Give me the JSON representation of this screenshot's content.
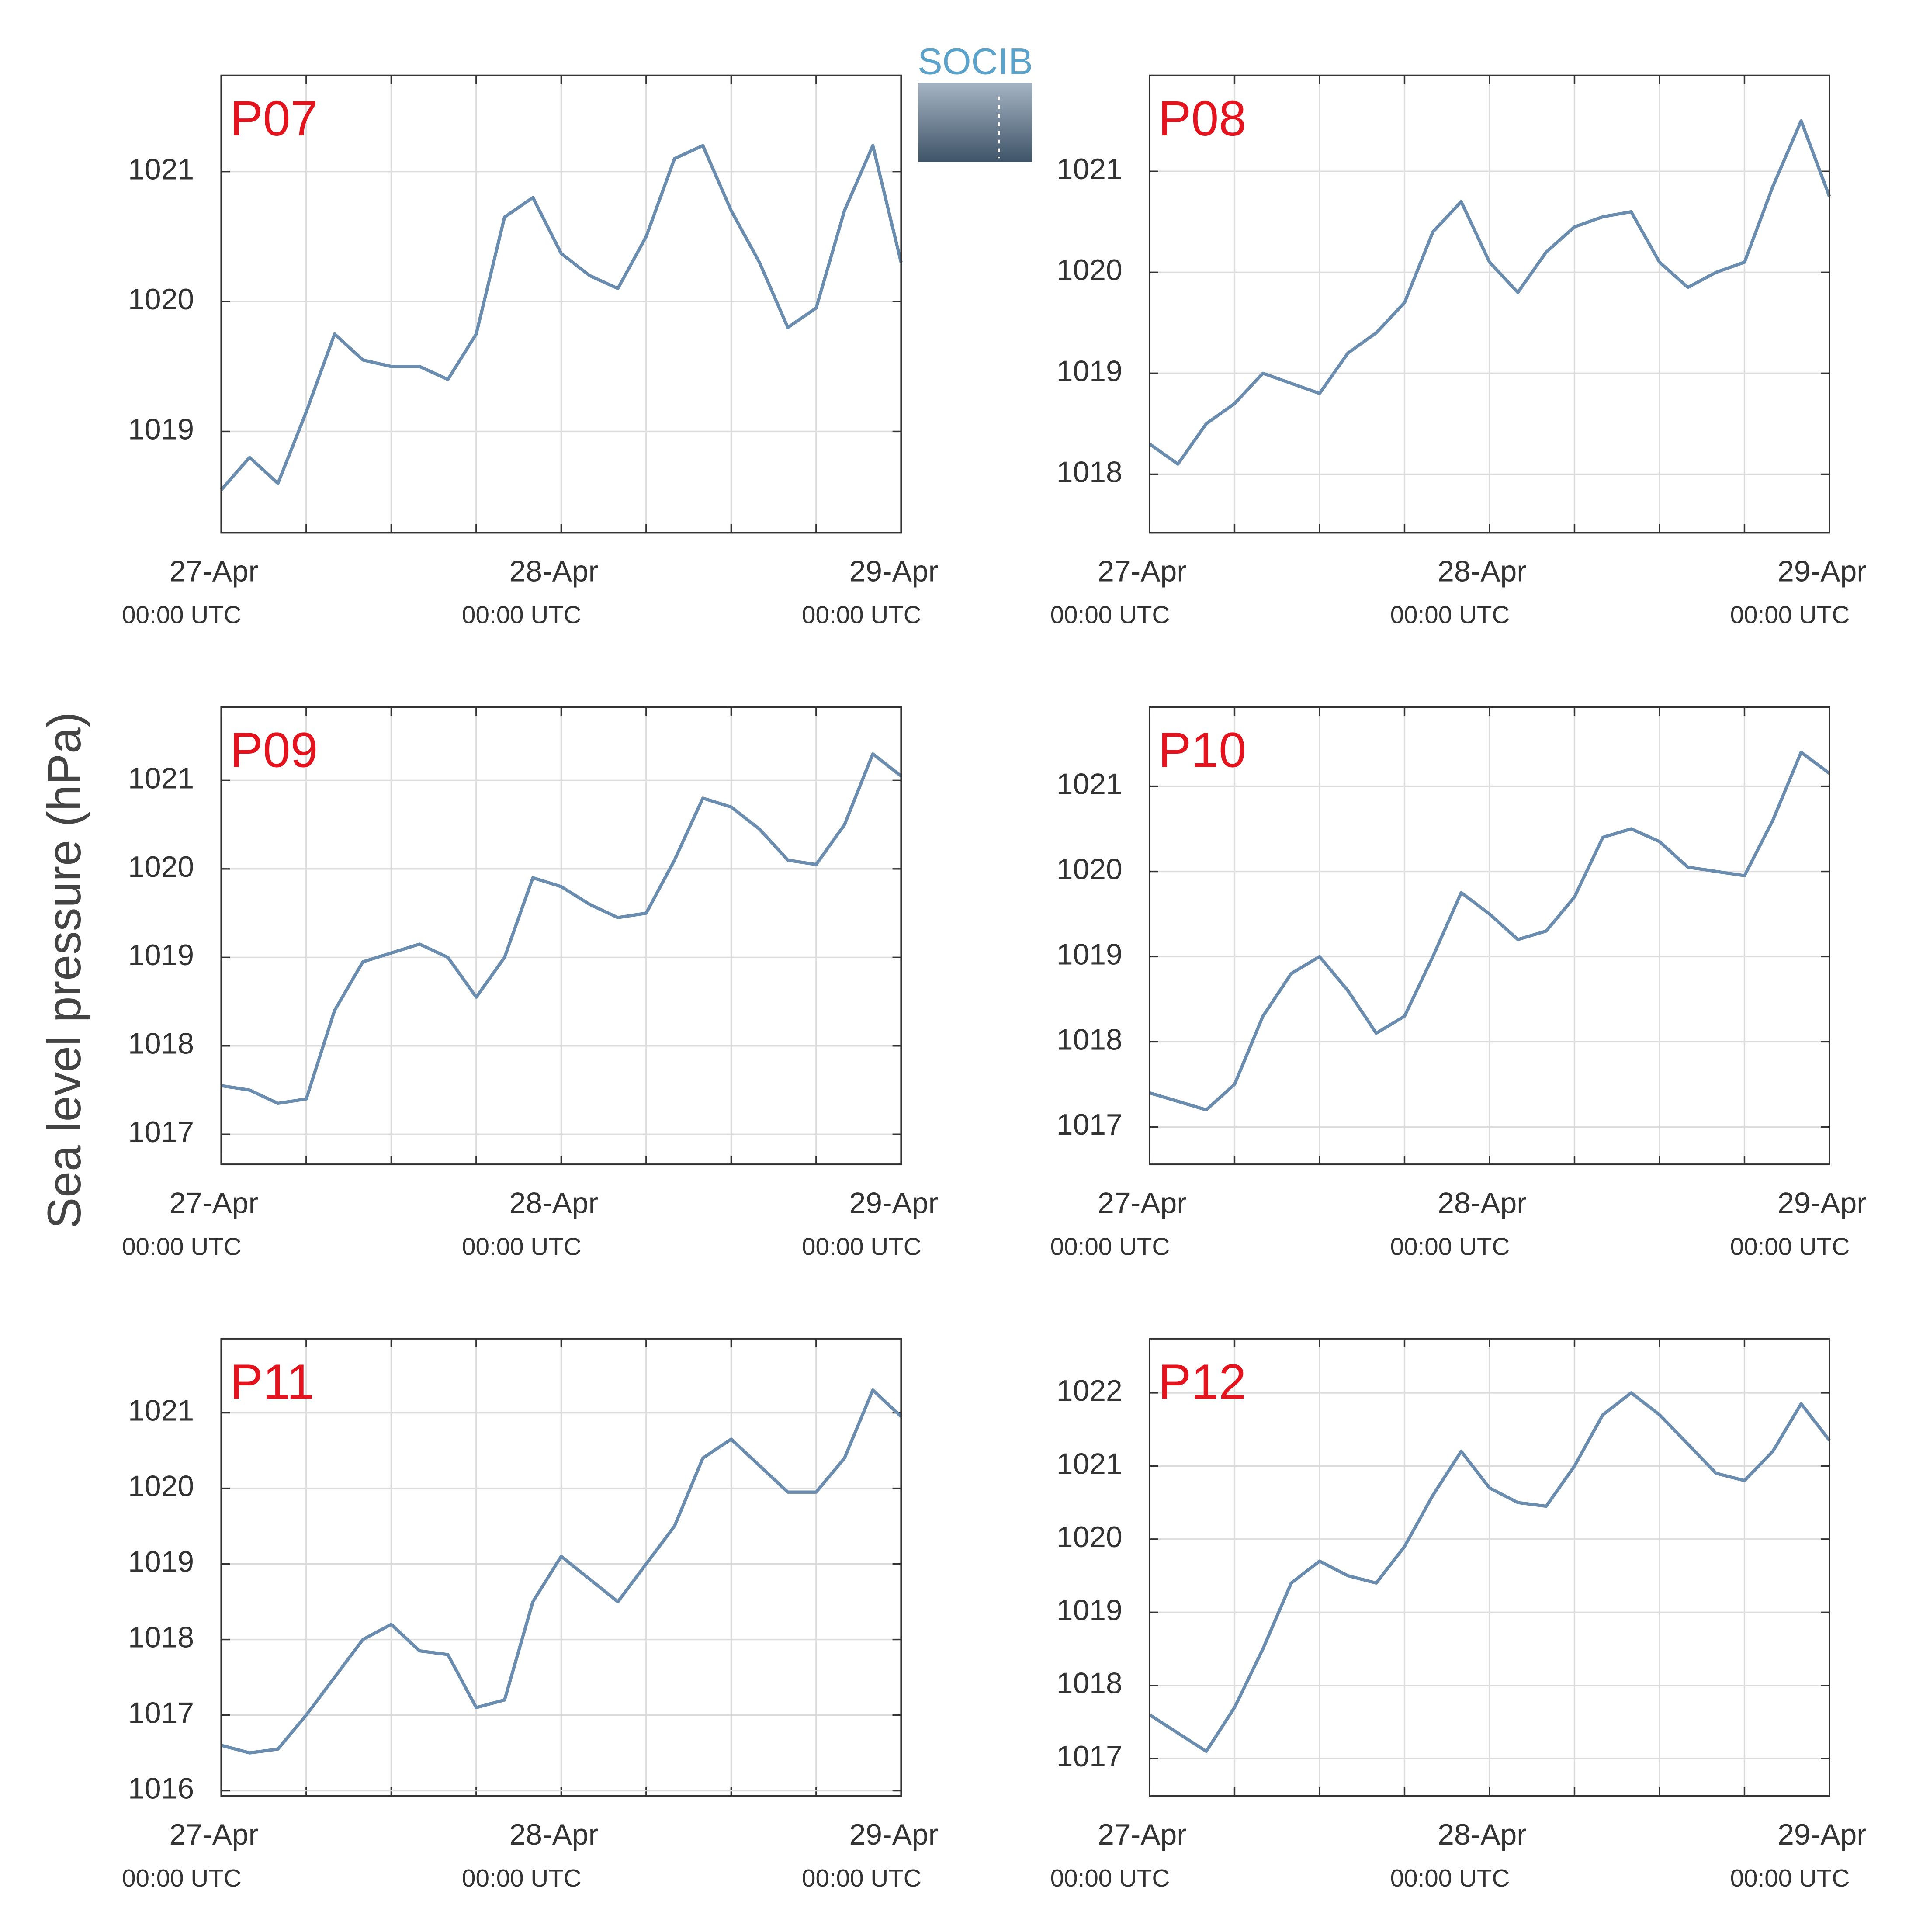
{
  "logo": "SOCIB",
  "ylabel": "Sea level pressure (hPa)",
  "chart_data": [
    {
      "type": "line",
      "title": "P07",
      "color": "#6a8caf",
      "x": [
        0,
        2,
        4,
        6,
        8,
        10,
        12,
        14,
        16,
        18,
        20,
        22,
        24,
        26,
        28,
        30,
        32,
        34,
        36,
        38,
        40,
        42,
        44,
        46,
        48
      ],
      "values": [
        1018.55,
        1018.8,
        1018.6,
        1019.15,
        1019.75,
        1019.55,
        1019.5,
        1019.5,
        1019.4,
        1019.75,
        1020.65,
        1020.8,
        1020.37,
        1020.2,
        1020.1,
        1020.5,
        1021.1,
        1021.2,
        1020.7,
        1020.3,
        1019.8,
        1019.95,
        1020.7,
        1021.2,
        1020.3
      ],
      "xlim": [
        0,
        48
      ],
      "xticks": [
        {
          "value": 0,
          "label": "27-Apr",
          "sublabel": "00:00 UTC"
        },
        {
          "value": 24,
          "label": "28-Apr",
          "sublabel": "00:00 UTC"
        },
        {
          "value": 48,
          "label": "29-Apr",
          "sublabel": "00:00 UTC"
        }
      ],
      "xminor": [
        6,
        12,
        18,
        30,
        36,
        42
      ],
      "ylim": [
        1018.22,
        1021.74
      ],
      "yticks": [
        1019,
        1020,
        1021
      ],
      "grid": true
    },
    {
      "type": "line",
      "title": "P08",
      "color": "#6a8caf",
      "x": [
        0,
        2,
        4,
        6,
        8,
        10,
        12,
        14,
        16,
        18,
        20,
        22,
        24,
        26,
        28,
        30,
        32,
        34,
        36,
        38,
        40,
        42,
        44,
        46,
        48
      ],
      "values": [
        1018.3,
        1018.1,
        1018.5,
        1018.7,
        1019.0,
        1018.9,
        1018.8,
        1019.2,
        1019.4,
        1019.7,
        1020.4,
        1020.7,
        1020.1,
        1019.8,
        1020.2,
        1020.45,
        1020.55,
        1020.6,
        1020.1,
        1019.85,
        1020.0,
        1020.1,
        1020.85,
        1021.5,
        1020.75
      ],
      "xlim": [
        0,
        48
      ],
      "xticks": [
        {
          "value": 0,
          "label": "27-Apr",
          "sublabel": "00:00 UTC"
        },
        {
          "value": 24,
          "label": "28-Apr",
          "sublabel": "00:00 UTC"
        },
        {
          "value": 48,
          "label": "29-Apr",
          "sublabel": "00:00 UTC"
        }
      ],
      "xminor": [
        6,
        12,
        18,
        30,
        36,
        42
      ],
      "ylim": [
        1017.42,
        1021.95
      ],
      "yticks": [
        1018,
        1019,
        1020,
        1021
      ],
      "grid": true
    },
    {
      "type": "line",
      "title": "P09",
      "color": "#6a8caf",
      "x": [
        0,
        2,
        4,
        6,
        8,
        10,
        12,
        14,
        16,
        18,
        20,
        22,
        24,
        26,
        28,
        30,
        32,
        34,
        36,
        38,
        40,
        42,
        44,
        46,
        48
      ],
      "values": [
        1017.55,
        1017.5,
        1017.35,
        1017.4,
        1018.4,
        1018.95,
        1019.05,
        1019.15,
        1019.0,
        1018.55,
        1019.0,
        1019.9,
        1019.8,
        1019.6,
        1019.45,
        1019.5,
        1020.1,
        1020.8,
        1020.7,
        1020.45,
        1020.1,
        1020.05,
        1020.5,
        1021.3,
        1021.05
      ],
      "xlim": [
        0,
        48
      ],
      "xticks": [
        {
          "value": 0,
          "label": "27-Apr",
          "sublabel": "00:00 UTC"
        },
        {
          "value": 24,
          "label": "28-Apr",
          "sublabel": "00:00 UTC"
        },
        {
          "value": 48,
          "label": "29-Apr",
          "sublabel": "00:00 UTC"
        }
      ],
      "xminor": [
        6,
        12,
        18,
        30,
        36,
        42
      ],
      "ylim": [
        1016.66,
        1021.83
      ],
      "yticks": [
        1017,
        1018,
        1019,
        1020,
        1021
      ],
      "grid": true
    },
    {
      "type": "line",
      "title": "P10",
      "color": "#6a8caf",
      "x": [
        0,
        2,
        4,
        6,
        8,
        10,
        12,
        14,
        16,
        18,
        20,
        22,
        24,
        26,
        28,
        30,
        32,
        34,
        36,
        38,
        40,
        42,
        44,
        46,
        48
      ],
      "values": [
        1017.4,
        1017.3,
        1017.2,
        1017.5,
        1018.3,
        1018.8,
        1019.0,
        1018.6,
        1018.1,
        1018.3,
        1019.0,
        1019.75,
        1019.5,
        1019.2,
        1019.3,
        1019.7,
        1020.4,
        1020.5,
        1020.35,
        1020.05,
        1020.0,
        1019.95,
        1020.6,
        1021.4,
        1021.15
      ],
      "xlim": [
        0,
        48
      ],
      "xticks": [
        {
          "value": 0,
          "label": "27-Apr",
          "sublabel": "00:00 UTC"
        },
        {
          "value": 24,
          "label": "28-Apr",
          "sublabel": "00:00 UTC"
        },
        {
          "value": 48,
          "label": "29-Apr",
          "sublabel": "00:00 UTC"
        }
      ],
      "xminor": [
        6,
        12,
        18,
        30,
        36,
        42
      ],
      "ylim": [
        1016.56,
        1021.93
      ],
      "yticks": [
        1017,
        1018,
        1019,
        1020,
        1021
      ],
      "grid": true
    },
    {
      "type": "line",
      "title": "P11",
      "color": "#6a8caf",
      "x": [
        0,
        2,
        4,
        6,
        8,
        10,
        12,
        14,
        16,
        18,
        20,
        22,
        24,
        26,
        28,
        30,
        32,
        34,
        36,
        38,
        40,
        42,
        44,
        46,
        48
      ],
      "values": [
        1016.6,
        1016.5,
        1016.55,
        1017.0,
        1017.5,
        1018.0,
        1018.2,
        1017.85,
        1017.8,
        1017.1,
        1017.2,
        1018.5,
        1019.1,
        1018.8,
        1018.5,
        1019.0,
        1019.5,
        1020.4,
        1020.65,
        1020.3,
        1019.95,
        1019.95,
        1020.4,
        1021.3,
        1020.95
      ],
      "xlim": [
        0,
        48
      ],
      "xticks": [
        {
          "value": 0,
          "label": "27-Apr",
          "sublabel": "00:00 UTC"
        },
        {
          "value": 24,
          "label": "28-Apr",
          "sublabel": "00:00 UTC"
        },
        {
          "value": 48,
          "label": "29-Apr",
          "sublabel": "00:00 UTC"
        }
      ],
      "xminor": [
        6,
        12,
        18,
        30,
        36,
        42
      ],
      "ylim": [
        1015.93,
        1021.98
      ],
      "yticks": [
        1016,
        1017,
        1018,
        1019,
        1020,
        1021
      ],
      "grid": true
    },
    {
      "type": "line",
      "title": "P12",
      "color": "#6a8caf",
      "x": [
        0,
        2,
        4,
        6,
        8,
        10,
        12,
        14,
        16,
        18,
        20,
        22,
        24,
        26,
        28,
        30,
        32,
        34,
        36,
        38,
        40,
        42,
        44,
        46,
        48
      ],
      "values": [
        1017.6,
        1017.35,
        1017.1,
        1017.7,
        1018.5,
        1019.4,
        1019.7,
        1019.5,
        1019.4,
        1019.9,
        1020.6,
        1021.2,
        1020.7,
        1020.5,
        1020.45,
        1021.0,
        1021.7,
        1022.0,
        1021.7,
        1021.3,
        1020.9,
        1020.8,
        1021.2,
        1021.85,
        1021.35
      ],
      "xlim": [
        0,
        48
      ],
      "xticks": [
        {
          "value": 0,
          "label": "27-Apr",
          "sublabel": "00:00 UTC"
        },
        {
          "value": 24,
          "label": "28-Apr",
          "sublabel": "00:00 UTC"
        },
        {
          "value": 48,
          "label": "29-Apr",
          "sublabel": "00:00 UTC"
        }
      ],
      "xminor": [
        6,
        12,
        18,
        30,
        36,
        42
      ],
      "ylim": [
        1016.49,
        1022.74
      ],
      "yticks": [
        1017,
        1018,
        1019,
        1020,
        1021,
        1022
      ],
      "grid": true
    }
  ]
}
